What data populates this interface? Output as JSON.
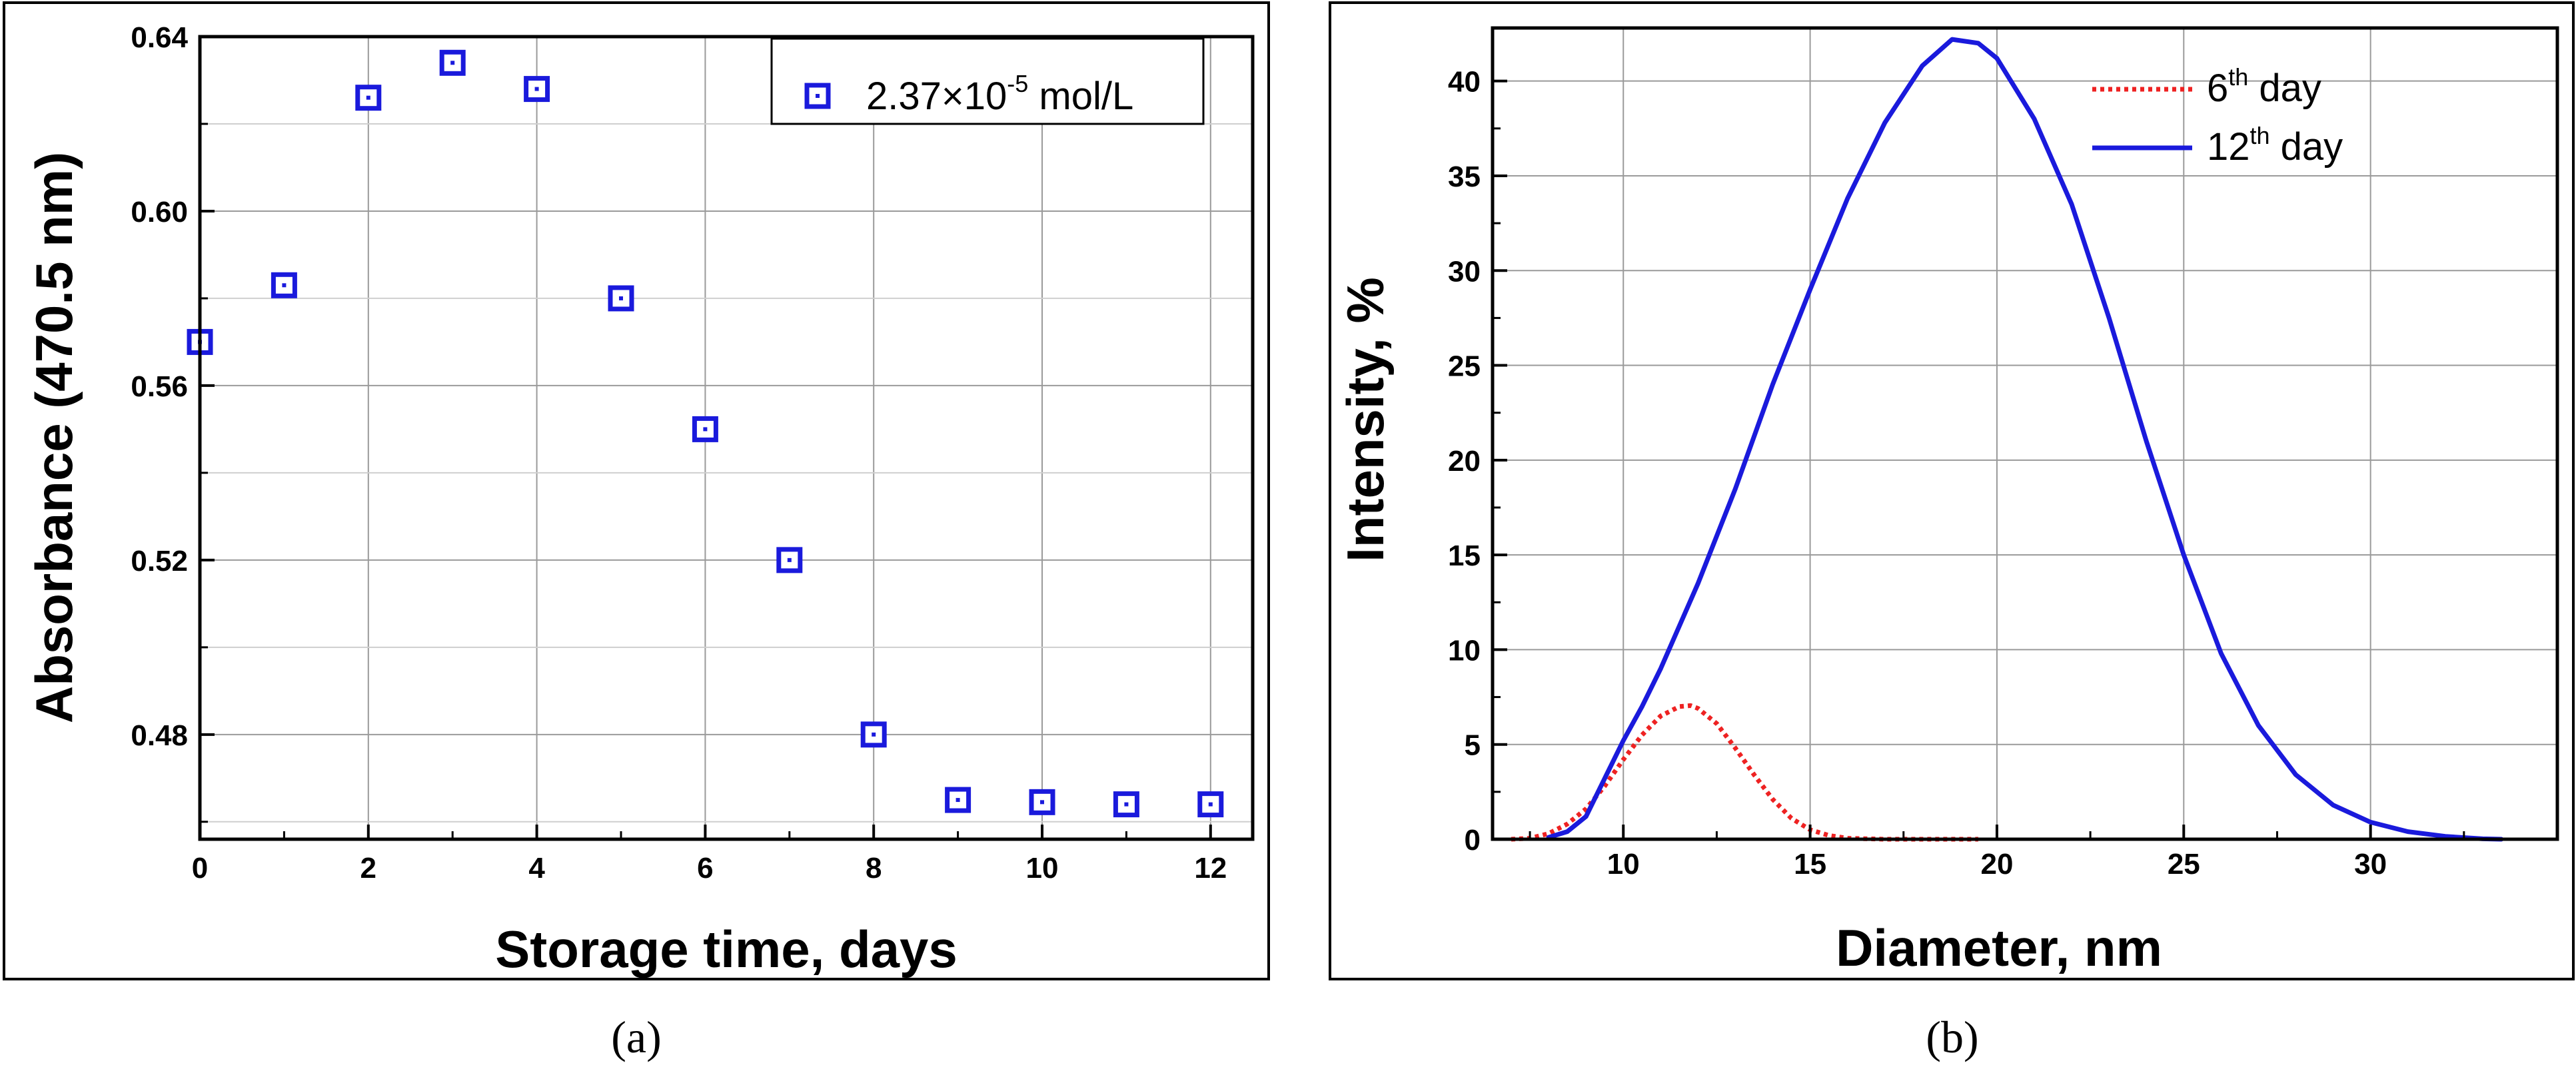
{
  "chart_data": [
    {
      "type": "scatter",
      "panel_label": "(a)",
      "xlabel": "Storage time, days",
      "ylabel": "Absorbance (470.5 nm)",
      "xlim": [
        0,
        12.5
      ],
      "ylim": [
        0.456,
        0.64
      ],
      "xticks": [
        "0",
        "2",
        "4",
        "6",
        "8",
        "10",
        "12"
      ],
      "xtick_values": [
        0,
        2,
        4,
        6,
        8,
        10,
        12
      ],
      "yticks": [
        "0.48",
        "0.52",
        "0.56",
        "0.60",
        "0.64"
      ],
      "ytick_values": [
        0.48,
        0.52,
        0.56,
        0.6,
        0.64
      ],
      "grid": true,
      "legend_position": "top-right",
      "series": [
        {
          "name": "2.37×10",
          "name_exponent": "-5",
          "name_unit": " mol/L",
          "color": "#1a1adc",
          "marker": "open-square",
          "x": [
            0,
            1,
            2,
            3,
            4,
            5,
            6,
            7,
            8,
            9,
            10,
            11,
            12
          ],
          "y": [
            0.57,
            0.583,
            0.626,
            0.634,
            0.628,
            0.58,
            0.55,
            0.52,
            0.48,
            0.465,
            0.4645,
            0.464,
            0.464
          ]
        }
      ]
    },
    {
      "type": "line",
      "panel_label": "(b)",
      "xlabel": "Diameter, nm",
      "ylabel": "Intensity, %",
      "xlim": [
        6.5,
        35
      ],
      "ylim": [
        0,
        42.8
      ],
      "xticks": [
        "10",
        "15",
        "20",
        "25",
        "30"
      ],
      "xtick_values": [
        10,
        15,
        20,
        25,
        30
      ],
      "yticks": [
        "0",
        "5",
        "10",
        "15",
        "20",
        "25",
        "30",
        "35",
        "40"
      ],
      "ytick_values": [
        0,
        5,
        10,
        15,
        20,
        25,
        30,
        35,
        40
      ],
      "grid": true,
      "legend_position": "top-right",
      "series": [
        {
          "name": "6",
          "name_sup": "th",
          "name_rest": " day",
          "color": "#ee2222",
          "style": "dotted",
          "x": [
            7,
            7.5,
            8,
            8.5,
            9,
            9.5,
            10,
            10.5,
            11,
            11.5,
            11.8,
            12,
            12.5,
            13,
            13.5,
            14,
            14.5,
            15,
            15.5,
            16,
            17,
            18,
            19,
            19.5
          ],
          "y": [
            0,
            0.05,
            0.3,
            0.8,
            1.6,
            2.8,
            4.2,
            5.5,
            6.5,
            7.0,
            7.05,
            6.9,
            6.1,
            4.8,
            3.4,
            2.1,
            1.1,
            0.5,
            0.2,
            0.05,
            0,
            0,
            0,
            0
          ]
        },
        {
          "name": "12",
          "name_sup": "th",
          "name_rest": " day",
          "color": "#1a1adc",
          "style": "solid",
          "x": [
            8,
            8.5,
            9,
            9.5,
            10,
            10.5,
            11,
            12,
            13,
            14,
            15,
            16,
            17,
            18,
            18.8,
            19.5,
            20,
            21,
            22,
            23,
            24,
            25,
            26,
            27,
            28,
            29,
            30,
            31,
            32,
            33,
            33.5
          ],
          "y": [
            0.1,
            0.4,
            1.2,
            3.2,
            5.2,
            7.0,
            9.0,
            13.5,
            18.5,
            24.0,
            29.0,
            33.8,
            37.8,
            40.8,
            42.2,
            42.0,
            41.2,
            38.0,
            33.5,
            27.5,
            21.0,
            15.0,
            9.8,
            6.0,
            3.4,
            1.8,
            0.9,
            0.4,
            0.15,
            0.02,
            0
          ]
        }
      ]
    }
  ]
}
